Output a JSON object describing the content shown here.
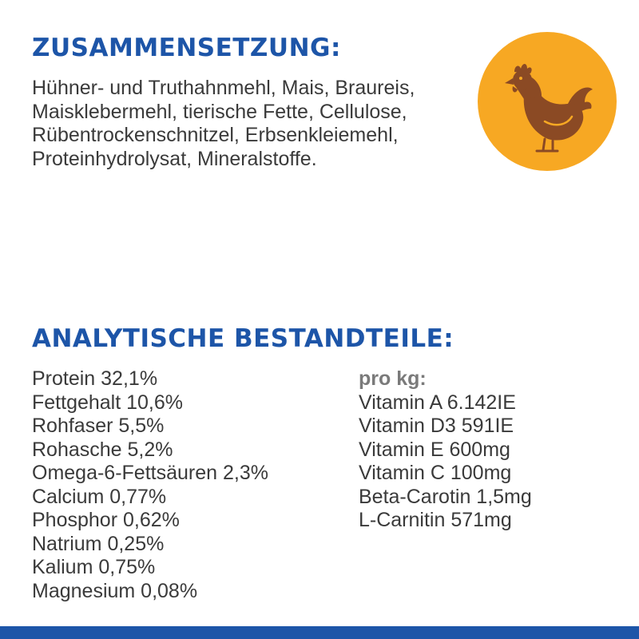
{
  "composition": {
    "title": "ZUSAMMENSETZUNG:",
    "text": "Hühner- und Truthahnmehl, Mais, Braureis, Maisklebermehl, tierische Fette, Cellulose, Rübentrockenschnitzel, Erbsenkleiemehl, Proteinhydrolysat, Mineralstoffe."
  },
  "analysis": {
    "title": "ANALYTISCHE BESTANDTEILE:",
    "nutrients": [
      "Protein 32,1%",
      "Fettgehalt 10,6%",
      "Rohfaser 5,5%",
      "Rohasche 5,2%",
      "Omega-6-Fettsäuren 2,3%",
      "Calcium 0,77%",
      "Phosphor 0,62%",
      "Natrium 0,25%",
      "Kalium 0,75%",
      "Magnesium 0,08%"
    ],
    "per_kg_label": "pro kg:",
    "per_kg": [
      "Vitamin A 6.142IE",
      "Vitamin D3 591IE",
      "Vitamin E 600mg",
      "Vitamin C 100mg",
      "Beta-Carotin 1,5mg",
      "L-Carnitin 571mg"
    ]
  },
  "icons": {
    "badge": "chicken-icon"
  },
  "colors": {
    "heading": "#1d55a8",
    "text": "#3a3a3a",
    "badge": "#f7a823",
    "chicken": "#8b4a24",
    "bottom_bar": "#1d55a8"
  }
}
